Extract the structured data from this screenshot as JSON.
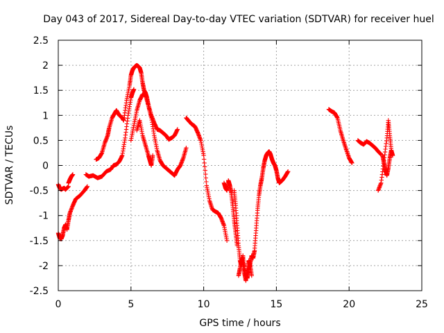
{
  "chart_data": {
    "type": "scatter",
    "title": "Day 043 of 2017, Sidereal Day-to-day VTEC variation (SDTVAR) for receiver huel",
    "xlabel": "GPS time / hours",
    "ylabel": "SDTVAR / TECUs",
    "xlim": [
      0,
      25
    ],
    "ylim": [
      -2.5,
      2.5
    ],
    "xticks": [
      0,
      5,
      10,
      15,
      20,
      25
    ],
    "yticks": [
      -2.5,
      -2,
      -1.5,
      -1,
      -0.5,
      0,
      0.5,
      1,
      1.5,
      2,
      2.5
    ],
    "xtick_labels": [
      "0",
      "5",
      "10",
      "15",
      "20",
      "25"
    ],
    "ytick_labels": [
      "-2.5",
      "-2",
      "-1.5",
      "-1",
      "-0.5",
      "0",
      "0.5",
      "1",
      "1.5",
      "2",
      "2.5"
    ],
    "grid": true,
    "marker": "plus",
    "series_color": "#ff0000",
    "series": [
      {
        "name": "trace-1",
        "x": [
          0.0,
          0.1,
          0.2,
          0.4,
          0.5,
          0.7
        ],
        "y": [
          -0.38,
          -0.45,
          -0.48,
          -0.45,
          -0.48,
          -0.42
        ]
      },
      {
        "name": "trace-2",
        "x": [
          0.0,
          0.1,
          0.2,
          0.3,
          0.4,
          0.5,
          0.6,
          0.7,
          0.8,
          1.0,
          1.2,
          1.5,
          1.8,
          2.0
        ],
        "y": [
          -1.35,
          -1.45,
          -1.47,
          -1.4,
          -1.25,
          -1.18,
          -1.28,
          -1.1,
          -0.95,
          -0.8,
          -0.67,
          -0.6,
          -0.5,
          -0.42
        ]
      },
      {
        "name": "trace-3",
        "x": [
          0.7,
          0.8,
          0.9,
          1.0
        ],
        "y": [
          -0.35,
          -0.28,
          -0.22,
          -0.18
        ]
      },
      {
        "name": "trace-4",
        "x": [
          1.9,
          2.1,
          2.4,
          2.7,
          3.0,
          3.3,
          3.6,
          3.8,
          4.0,
          4.2,
          4.4,
          4.6,
          4.8,
          5.0,
          5.1,
          5.2
        ],
        "y": [
          -0.18,
          -0.22,
          -0.2,
          -0.25,
          -0.22,
          -0.12,
          -0.08,
          0.0,
          0.02,
          0.08,
          0.2,
          0.55,
          1.0,
          1.35,
          1.45,
          1.52
        ]
      },
      {
        "name": "trace-5",
        "x": [
          2.6,
          2.8,
          3.0,
          3.2,
          3.4,
          3.5,
          3.7,
          3.9,
          4.0,
          4.2,
          4.4,
          4.5,
          4.7,
          4.9,
          5.0,
          5.1,
          5.2,
          5.3,
          5.4,
          5.5,
          5.6,
          5.7,
          5.8,
          5.9,
          6.0,
          6.1,
          6.2,
          6.4,
          6.6,
          6.8,
          7.0,
          7.2,
          7.4,
          7.6,
          7.8,
          8.0,
          8.2
        ],
        "y": [
          0.12,
          0.15,
          0.25,
          0.45,
          0.6,
          0.75,
          0.95,
          1.05,
          1.1,
          1.0,
          0.95,
          0.9,
          1.3,
          1.6,
          1.8,
          1.9,
          1.95,
          1.98,
          2.0,
          1.98,
          1.95,
          1.85,
          1.65,
          1.5,
          1.45,
          1.35,
          1.2,
          1.0,
          0.85,
          0.72,
          0.7,
          0.65,
          0.6,
          0.52,
          0.55,
          0.6,
          0.72
        ]
      },
      {
        "name": "trace-6",
        "x": [
          5.0,
          5.2,
          5.4,
          5.6,
          5.8,
          6.0,
          6.2,
          6.4,
          6.6,
          6.8,
          7.0,
          7.2,
          7.4,
          7.6,
          7.8,
          8.0,
          8.2,
          8.4,
          8.6,
          8.8
        ],
        "y": [
          0.5,
          0.8,
          1.1,
          1.3,
          1.42,
          1.4,
          1.2,
          0.95,
          0.6,
          0.3,
          0.1,
          0.0,
          -0.05,
          -0.1,
          -0.15,
          -0.2,
          -0.08,
          0.0,
          0.15,
          0.35
        ]
      },
      {
        "name": "trace-7",
        "x": [
          5.4,
          5.6,
          5.8,
          6.0,
          6.2,
          6.3,
          6.4,
          6.5
        ],
        "y": [
          0.7,
          0.9,
          0.6,
          0.4,
          0.2,
          0.1,
          0.0,
          0.2
        ]
      },
      {
        "name": "trace-8",
        "x": [
          8.8,
          9.0,
          9.2,
          9.4,
          9.6,
          9.8,
          10.0,
          10.2,
          10.4,
          10.6,
          10.8,
          11.0,
          11.2,
          11.4,
          11.6
        ],
        "y": [
          0.95,
          0.88,
          0.82,
          0.78,
          0.65,
          0.5,
          0.2,
          -0.4,
          -0.7,
          -0.88,
          -0.92,
          -0.95,
          -1.05,
          -1.2,
          -1.5
        ]
      },
      {
        "name": "trace-9",
        "x": [
          11.4,
          11.5,
          11.6,
          11.7,
          11.8,
          11.9,
          12.0,
          12.1,
          12.2,
          12.3
        ],
        "y": [
          -0.35,
          -0.45,
          -0.5,
          -0.3,
          -0.4,
          -0.55,
          -0.8,
          -1.1,
          -1.35,
          -1.6
        ]
      },
      {
        "name": "trace-10",
        "x": [
          12.1,
          12.2,
          12.3,
          12.4,
          12.5,
          12.6,
          12.7,
          12.8,
          12.9,
          13.0,
          13.1,
          13.2,
          13.3,
          13.4,
          13.5,
          13.6,
          13.7,
          13.8,
          13.9,
          14.0,
          14.1,
          14.2,
          14.3,
          14.4,
          14.5,
          14.6,
          14.7,
          14.8,
          14.9,
          15.0,
          15.1,
          15.2,
          15.4,
          15.6,
          15.8
        ],
        "y": [
          -0.5,
          -0.8,
          -1.2,
          -1.6,
          -1.9,
          -2.0,
          -1.8,
          -2.05,
          -2.2,
          -2.25,
          -2.1,
          -1.95,
          -1.8,
          -1.85,
          -1.7,
          -1.3,
          -0.9,
          -0.6,
          -0.4,
          -0.25,
          -0.05,
          0.1,
          0.2,
          0.25,
          0.28,
          0.22,
          0.12,
          0.05,
          0.0,
          -0.1,
          -0.25,
          -0.35,
          -0.3,
          -0.22,
          -0.12
        ]
      },
      {
        "name": "trace-11",
        "x": [
          12.4,
          12.5,
          12.6,
          12.7,
          12.8,
          12.9,
          13.0,
          13.1,
          13.2,
          13.3
        ],
        "y": [
          -2.2,
          -2.05,
          -1.85,
          -1.95,
          -2.15,
          -2.3,
          -2.1,
          -1.9,
          -2.0,
          -2.2
        ]
      },
      {
        "name": "trace-12",
        "x": [
          18.6,
          18.8,
          19.0,
          19.2,
          19.4,
          19.6,
          19.8,
          20.0,
          20.2
        ],
        "y": [
          1.12,
          1.08,
          1.05,
          0.95,
          0.7,
          0.5,
          0.32,
          0.15,
          0.05
        ]
      },
      {
        "name": "trace-13",
        "x": [
          20.6,
          20.8,
          21.0,
          21.2,
          21.4,
          21.6,
          21.8,
          22.0,
          22.2
        ],
        "y": [
          0.5,
          0.45,
          0.42,
          0.48,
          0.45,
          0.4,
          0.35,
          0.28,
          0.22
        ]
      },
      {
        "name": "trace-14",
        "x": [
          22.0,
          22.2,
          22.4,
          22.6,
          22.7,
          22.8,
          22.9
        ],
        "y": [
          -0.5,
          -0.35,
          0.1,
          0.55,
          0.9,
          0.6,
          0.3
        ]
      },
      {
        "name": "trace-15",
        "x": [
          22.3,
          22.4,
          22.5,
          22.6,
          22.7,
          22.8,
          22.9,
          23.0
        ],
        "y": [
          0.2,
          0.05,
          -0.1,
          -0.2,
          -0.05,
          0.15,
          0.3,
          0.2
        ]
      }
    ]
  }
}
